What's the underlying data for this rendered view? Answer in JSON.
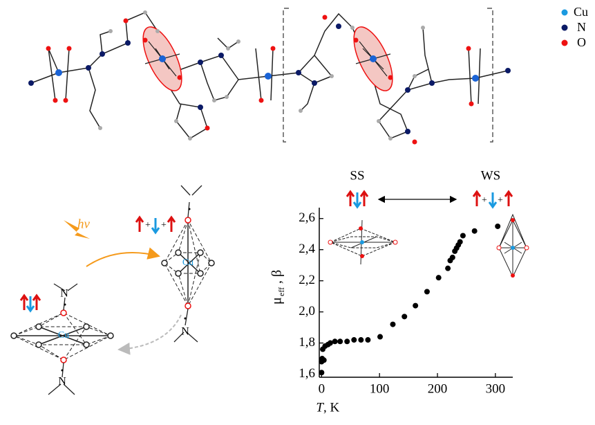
{
  "chart_data": {
    "type": "scatter",
    "x": [
      0,
      0,
      1,
      4,
      2,
      6,
      11,
      15,
      23,
      32,
      44,
      56,
      68,
      80,
      101,
      123,
      143,
      162,
      182,
      202,
      218,
      222,
      226,
      230,
      233,
      236,
      239,
      244,
      264,
      304
    ],
    "values": [
      1.61,
      1.68,
      1.7,
      1.69,
      1.76,
      1.78,
      1.79,
      1.8,
      1.81,
      1.81,
      1.81,
      1.82,
      1.82,
      1.82,
      1.84,
      1.92,
      1.97,
      2.04,
      2.13,
      2.22,
      2.28,
      2.33,
      2.35,
      2.39,
      2.41,
      2.43,
      2.45,
      2.49,
      2.52,
      2.55
    ],
    "color": "#000000",
    "xlim": [
      -4,
      330
    ],
    "ylim": [
      1.58,
      2.67
    ],
    "xticks": [
      0,
      100,
      200,
      300
    ],
    "yticks": [
      {
        "value": 1.6,
        "label": "1,6"
      },
      {
        "value": 1.8,
        "label": "1,8"
      },
      {
        "value": 2.0,
        "label": "2,0"
      },
      {
        "value": 2.2,
        "label": "2,2"
      },
      {
        "value": 2.4,
        "label": "2,4"
      },
      {
        "value": 2.6,
        "label": "2,6"
      }
    ],
    "xlabel": {
      "main": "T",
      "rest": ", K"
    },
    "ylabel": {
      "main": "μ",
      "subscript": "eff",
      "rest": ", β"
    }
  },
  "diagram": {
    "legend": [
      "Cu",
      "N",
      "O"
    ],
    "states": {
      "left": "SS",
      "right": "WS",
      "plus": [
        "+",
        "+"
      ]
    },
    "light": "hν",
    "octahedra": {
      "metal": [
        "Cu",
        "Cu"
      ],
      "nitrogen": [
        "N",
        "N",
        "N"
      ]
    }
  }
}
